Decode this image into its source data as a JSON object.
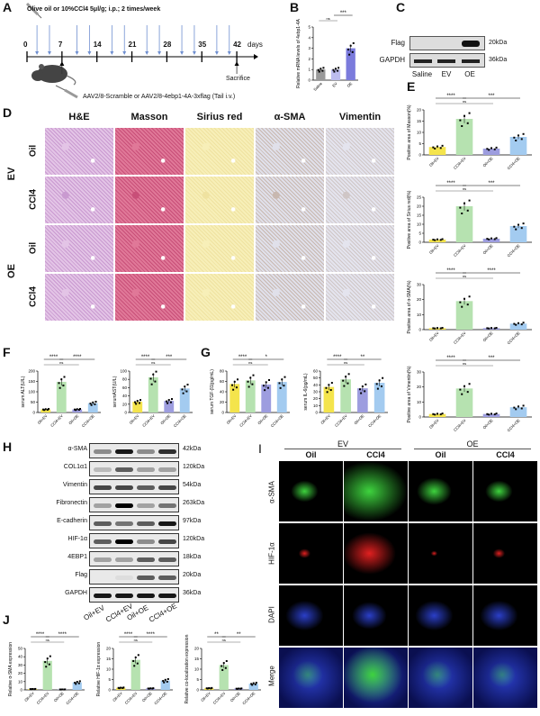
{
  "panels": {
    "A": "A",
    "B": "B",
    "C": "C",
    "D": "D",
    "E": "E",
    "F": "F",
    "G": "G",
    "H": "H",
    "I": "I",
    "J": "J"
  },
  "panelA": {
    "injection_text": "Olive oil or 10%CCl4 5μl/g; i.p.; 2 times/week",
    "aav_text": "AAV2/8-Scramble or AAV2/8-4ebp1-4A-3xflag (Tail i.v.)",
    "sacrifice": "Sacrifice",
    "days_unit": "days",
    "ticks": [
      "0",
      "7",
      "14",
      "21",
      "28",
      "35",
      "42"
    ],
    "arrow_color": "#6f8fd0"
  },
  "panelC": {
    "rows": [
      {
        "label": "Flag",
        "kda": "20kDa"
      },
      {
        "label": "GAPDH",
        "kda": "36kDa"
      }
    ],
    "lanes": [
      "Saline",
      "EV",
      "OE"
    ]
  },
  "panelD": {
    "columns": [
      "H&E",
      "Masson",
      "Sirius red",
      "α-SMA",
      "Vimentin"
    ],
    "groups": [
      "EV",
      "OE"
    ],
    "rows": [
      "Oil",
      "CCl4",
      "Oil",
      "CCl4"
    ]
  },
  "panelH": {
    "rows": [
      {
        "label": "α-SMA",
        "kda": "42kDa"
      },
      {
        "label": "COL1α1",
        "kda": "120kDa"
      },
      {
        "label": "Vimentin",
        "kda": "54kDa"
      },
      {
        "label": "Fibronectin",
        "kda": "263kDa"
      },
      {
        "label": "E-cadherin",
        "kda": "97kDa"
      },
      {
        "label": "HIF-1α",
        "kda": "120kDa"
      },
      {
        "label": "4EBP1",
        "kda": "18kDa"
      },
      {
        "label": "Flag",
        "kda": "20kDa"
      },
      {
        "label": "GAPDH",
        "kda": "36kDa"
      }
    ],
    "lanes": [
      "Oil+EV",
      "CCl4+EV",
      "Oil+OE",
      "CCl4+OE"
    ]
  },
  "panelI": {
    "groups": [
      "EV",
      "OE"
    ],
    "columns": [
      "Oil",
      "CCl4",
      "Oil",
      "CCl4"
    ],
    "rows": [
      "α-SMA",
      "HIF-1α",
      "DAPI",
      "Merge"
    ]
  },
  "colors": {
    "Oil+EV": "#f4e44c",
    "CCl4+EV": "#b6e2b0",
    "Oil+OE": "#9d9ddf",
    "CCl4+OE": "#a3cbf0"
  },
  "chart_data": [
    {
      "id": "B",
      "type": "bar",
      "categories": [
        "Saline",
        "EV",
        "OE"
      ],
      "values": [
        1.0,
        1.0,
        3.0
      ],
      "ylabel": "Relative mRNA levels of 4ebp1-4A",
      "ylim": [
        0,
        5
      ],
      "yticks": [
        0,
        1,
        2,
        3,
        4,
        5
      ],
      "colors": [
        "#9a9a9a",
        "#bcbcee",
        "#7b7bdc"
      ],
      "sig": [
        {
          "from": 0,
          "to": 1,
          "label": "ns"
        },
        {
          "from": 1,
          "to": 2,
          "label": "***"
        }
      ]
    },
    {
      "id": "E1",
      "type": "bar",
      "categories": [
        "Oil+EV",
        "CCl4+EV",
        "Oil+OE",
        "CCl4+OE"
      ],
      "values": [
        3.5,
        16,
        2.8,
        8
      ],
      "ylabel": "Positive area of Masson(%)",
      "ylim": [
        0,
        20
      ],
      "yticks": [
        0,
        5,
        10,
        15,
        20
      ],
      "sig": [
        {
          "from": 0,
          "to": 1,
          "label": "****"
        },
        {
          "from": 1,
          "to": 3,
          "label": "***"
        },
        {
          "from": 0,
          "to": 2,
          "label": "ns"
        }
      ]
    },
    {
      "id": "E2",
      "type": "bar",
      "categories": [
        "Oil+EV",
        "CCl4+EV",
        "Oil+OE",
        "CCl4+OE"
      ],
      "values": [
        1.5,
        20,
        2,
        9
      ],
      "ylabel": "Positive area of Sirius red(%)",
      "ylim": [
        0,
        25
      ],
      "yticks": [
        0,
        5,
        10,
        15,
        20,
        25
      ],
      "sig": [
        {
          "from": 0,
          "to": 1,
          "label": "****"
        },
        {
          "from": 1,
          "to": 3,
          "label": "***"
        },
        {
          "from": 0,
          "to": 2,
          "label": "ns"
        }
      ]
    },
    {
      "id": "E3",
      "type": "bar",
      "categories": [
        "Oil+EV",
        "CCl4+EV",
        "Oil+OE",
        "CCl4+OE"
      ],
      "values": [
        1,
        19,
        1,
        4
      ],
      "ylabel": "Positive area of α-SMA(%)",
      "ylim": [
        0,
        30
      ],
      "yticks": [
        0,
        10,
        20,
        30
      ],
      "sig": [
        {
          "from": 0,
          "to": 1,
          "label": "****"
        },
        {
          "from": 1,
          "to": 3,
          "label": "****"
        },
        {
          "from": 0,
          "to": 2,
          "label": "ns"
        }
      ]
    },
    {
      "id": "E4",
      "type": "bar",
      "categories": [
        "Oil+EV",
        "CCl4+EV",
        "Oil+OE",
        "CCl4+OE"
      ],
      "values": [
        2,
        19,
        2,
        6.5
      ],
      "ylabel": "Positive area of Vimentin(%)",
      "ylim": [
        0,
        30
      ],
      "yticks": [
        0,
        10,
        20,
        30
      ],
      "sig": [
        {
          "from": 0,
          "to": 1,
          "label": "****"
        },
        {
          "from": 1,
          "to": 3,
          "label": "***"
        },
        {
          "from": 0,
          "to": 2,
          "label": "ns"
        }
      ]
    },
    {
      "id": "F1",
      "type": "bar",
      "categories": [
        "Oil+EV",
        "CCl4+EV",
        "Oil+OE",
        "CCl4+OE"
      ],
      "values": [
        15,
        148,
        15,
        45
      ],
      "ylabel": "serum ALT(U/L)",
      "ylim": [
        0,
        200
      ],
      "yticks": [
        0,
        50,
        100,
        150,
        200
      ],
      "sig": [
        {
          "from": 0,
          "to": 1,
          "label": "****"
        },
        {
          "from": 1,
          "to": 3,
          "label": "****"
        },
        {
          "from": 0,
          "to": 2,
          "label": "ns"
        }
      ]
    },
    {
      "id": "F2",
      "type": "bar",
      "categories": [
        "Oil+EV",
        "CCl4+EV",
        "Oil+OE",
        "CCl4+OE"
      ],
      "values": [
        26,
        85,
        28,
        58
      ],
      "ylabel": "serumAST(U/L)",
      "ylim": [
        0,
        100
      ],
      "yticks": [
        0,
        20,
        40,
        60,
        80,
        100
      ],
      "sig": [
        {
          "from": 0,
          "to": 1,
          "label": "****"
        },
        {
          "from": 1,
          "to": 3,
          "label": "***"
        },
        {
          "from": 0,
          "to": 2,
          "label": "ns"
        }
      ]
    },
    {
      "id": "G1",
      "type": "bar",
      "categories": [
        "Oil+EV",
        "CCl4+EV",
        "Oil+OE",
        "CCl4+OE"
      ],
      "values": [
        55,
        62,
        54,
        59
      ],
      "ylabel": "serum TGF-β1(pg/mL)",
      "ylim": [
        0,
        80
      ],
      "yticks": [
        0,
        20,
        40,
        60,
        80
      ],
      "sig": [
        {
          "from": 0,
          "to": 1,
          "label": "****"
        },
        {
          "from": 1,
          "to": 3,
          "label": "*"
        },
        {
          "from": 0,
          "to": 2,
          "label": "ns"
        }
      ]
    },
    {
      "id": "G2",
      "type": "bar",
      "categories": [
        "Oil+EV",
        "CCl4+EV",
        "Oil+OE",
        "CCl4+OE"
      ],
      "values": [
        37,
        48,
        35,
        43
      ],
      "ylabel": "serum IL-6(pg/mL)",
      "ylim": [
        0,
        60
      ],
      "yticks": [
        0,
        10,
        20,
        30,
        40,
        50,
        60
      ],
      "sig": [
        {
          "from": 0,
          "to": 1,
          "label": "****"
        },
        {
          "from": 1,
          "to": 3,
          "label": "**"
        },
        {
          "from": 0,
          "to": 2,
          "label": "ns"
        }
      ]
    },
    {
      "id": "J1",
      "type": "bar",
      "categories": [
        "Oil+EV",
        "CCl4+EV",
        "Oil+OE",
        "CCl4+OE"
      ],
      "values": [
        1,
        35,
        0.5,
        9
      ],
      "ylabel": "Relative α-SMA expression",
      "ylim": [
        0,
        50
      ],
      "yticks": [
        0,
        10,
        20,
        30,
        40,
        50
      ],
      "sig": [
        {
          "from": 0,
          "to": 1,
          "label": "****"
        },
        {
          "from": 1,
          "to": 3,
          "label": "****"
        },
        {
          "from": 0,
          "to": 2,
          "label": "ns"
        }
      ]
    },
    {
      "id": "J2",
      "type": "bar",
      "categories": [
        "Oil+EV",
        "CCl4+EV",
        "Oil+OE",
        "CCl4+OE"
      ],
      "values": [
        1,
        14.5,
        0.7,
        4.5
      ],
      "ylabel": "Relative HIF-1α expression",
      "ylim": [
        0,
        20
      ],
      "yticks": [
        0,
        5,
        10,
        15,
        20
      ],
      "sig": [
        {
          "from": 0,
          "to": 1,
          "label": "****"
        },
        {
          "from": 1,
          "to": 3,
          "label": "****"
        },
        {
          "from": 0,
          "to": 2,
          "label": "ns"
        }
      ]
    },
    {
      "id": "J3",
      "type": "bar",
      "categories": [
        "Oil+EV",
        "CCl4+EV",
        "Oil+OE",
        "CCl4+OE"
      ],
      "values": [
        0.8,
        12,
        0.6,
        3
      ],
      "ylabel": "Relative co-localization expression",
      "ylim": [
        0,
        20
      ],
      "yticks": [
        0,
        5,
        10,
        15,
        20
      ],
      "sig": [
        {
          "from": 0,
          "to": 1,
          "label": "**"
        },
        {
          "from": 1,
          "to": 3,
          "label": "**"
        },
        {
          "from": 0,
          "to": 2,
          "label": "ns"
        }
      ]
    }
  ]
}
